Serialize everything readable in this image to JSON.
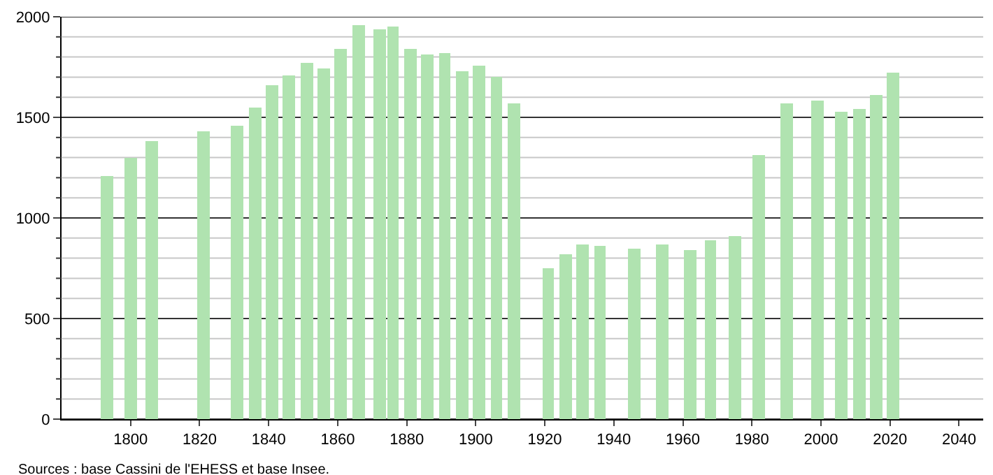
{
  "chart_data": {
    "type": "bar",
    "x": [
      1793,
      1800,
      1806,
      1821,
      1831,
      1836,
      1841,
      1846,
      1851,
      1856,
      1861,
      1866,
      1872,
      1876,
      1881,
      1886,
      1891,
      1896,
      1901,
      1906,
      1911,
      1921,
      1926,
      1931,
      1936,
      1946,
      1954,
      1962,
      1968,
      1975,
      1982,
      1990,
      1999,
      2006,
      2011,
      2016,
      2021
    ],
    "values": [
      1210,
      1300,
      1380,
      1430,
      1460,
      1550,
      1660,
      1710,
      1770,
      1740,
      1840,
      1960,
      1940,
      1950,
      1840,
      1810,
      1820,
      1730,
      1760,
      1700,
      1570,
      750,
      820,
      870,
      860,
      850,
      870,
      840,
      890,
      910,
      1310,
      1570,
      1580,
      1530,
      1540,
      1610,
      1720
    ],
    "color": "#b0e3b0",
    "xlim": [
      1780,
      2047
    ],
    "xticks": [
      1800,
      1820,
      1840,
      1860,
      1880,
      1900,
      1920,
      1940,
      1960,
      1980,
      2000,
      2020,
      2040
    ],
    "ylim": [
      0,
      2000
    ],
    "yticks": [
      0,
      500,
      1000,
      1500,
      2000
    ],
    "grid": "y",
    "annotations": [
      "Sources : base Cassini de l'EHESS et base Insee."
    ]
  }
}
